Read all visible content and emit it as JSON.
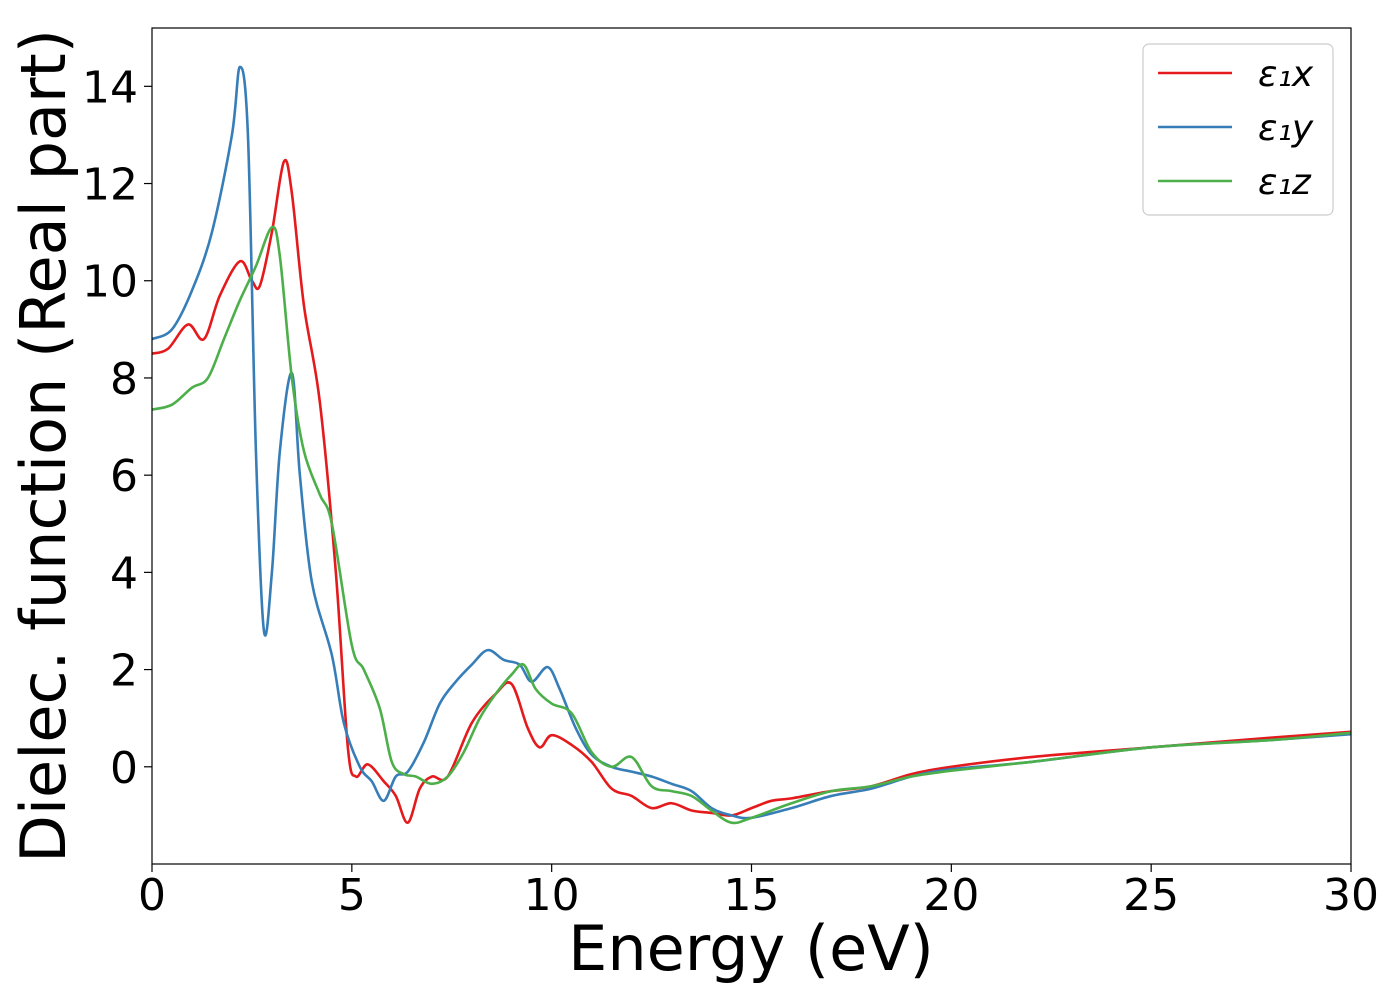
{
  "chart_data": {
    "type": "line",
    "title": "",
    "xlabel": "Energy (eV)",
    "ylabel": "Dielec. function (Real part)",
    "xlim": [
      0,
      30
    ],
    "ylim": [
      -2,
      15.2
    ],
    "x_ticks": [
      "0",
      "5",
      "10",
      "15",
      "20",
      "25",
      "30"
    ],
    "y_ticks": [
      "0",
      "2",
      "4",
      "6",
      "8",
      "10",
      "12",
      "14"
    ],
    "grid": false,
    "legend": {
      "position": "top-right"
    },
    "series": [
      {
        "name": "ε₁x",
        "color": "#e41a1c",
        "x": [
          0,
          0.4,
          0.9,
          1.3,
          1.7,
          2.2,
          2.5,
          2.7,
          3.0,
          3.3,
          3.5,
          3.8,
          4.2,
          4.6,
          4.9,
          5.1,
          5.4,
          5.8,
          6.1,
          6.4,
          6.7,
          7.0,
          7.4,
          8.0,
          8.6,
          9.0,
          9.4,
          9.7,
          10.0,
          10.5,
          11.0,
          11.5,
          12.0,
          12.5,
          13.0,
          13.5,
          14.0,
          14.5,
          15.0,
          15.5,
          16.0,
          17.0,
          18.0,
          19.0,
          20.0,
          22.0,
          25.0,
          28.0,
          30.0
        ],
        "y": [
          8.5,
          8.6,
          9.1,
          8.8,
          9.7,
          10.4,
          10.0,
          9.9,
          11.0,
          12.45,
          11.8,
          9.5,
          7.5,
          4.0,
          0.4,
          -0.2,
          0.05,
          -0.3,
          -0.6,
          -1.15,
          -0.45,
          -0.2,
          -0.2,
          0.9,
          1.5,
          1.7,
          0.8,
          0.4,
          0.65,
          0.45,
          0.1,
          -0.45,
          -0.6,
          -0.85,
          -0.75,
          -0.9,
          -0.95,
          -1.0,
          -0.85,
          -0.7,
          -0.65,
          -0.5,
          -0.4,
          -0.15,
          0.0,
          0.2,
          0.4,
          0.6,
          0.72
        ]
      },
      {
        "name": "ε₁y",
        "color": "#377eb8",
        "x": [
          0,
          0.5,
          1.0,
          1.5,
          2.0,
          2.2,
          2.4,
          2.6,
          2.8,
          3.0,
          3.2,
          3.5,
          3.7,
          4.0,
          4.5,
          4.8,
          5.2,
          5.5,
          5.8,
          6.1,
          6.4,
          6.8,
          7.2,
          7.6,
          8.0,
          8.4,
          8.8,
          9.2,
          9.5,
          9.9,
          10.2,
          10.6,
          11.0,
          11.5,
          12.0,
          12.5,
          13.0,
          13.5,
          14.0,
          14.5,
          15.0,
          16.0,
          17.0,
          18.0,
          19.0,
          20.0,
          22.0,
          25.0,
          28.0,
          30.0
        ],
        "y": [
          8.8,
          9.0,
          9.8,
          11.0,
          13.0,
          14.4,
          13.0,
          6.5,
          2.8,
          4.0,
          6.5,
          8.1,
          6.0,
          3.8,
          2.3,
          0.9,
          0.0,
          -0.3,
          -0.7,
          -0.2,
          -0.1,
          0.5,
          1.3,
          1.75,
          2.1,
          2.4,
          2.2,
          2.1,
          1.75,
          2.05,
          1.6,
          0.8,
          0.25,
          0.0,
          -0.1,
          -0.2,
          -0.35,
          -0.5,
          -0.85,
          -1.0,
          -1.05,
          -0.85,
          -0.6,
          -0.45,
          -0.2,
          -0.05,
          0.1,
          0.4,
          0.55,
          0.67
        ]
      },
      {
        "name": "ε₁z",
        "color": "#4daf4a",
        "x": [
          0,
          0.5,
          1.0,
          1.4,
          1.8,
          2.2,
          2.6,
          3.0,
          3.2,
          3.5,
          3.8,
          4.2,
          4.5,
          5.0,
          5.3,
          5.7,
          6.0,
          6.3,
          6.6,
          7.0,
          7.4,
          7.8,
          8.2,
          8.6,
          9.0,
          9.3,
          9.6,
          10.0,
          10.5,
          11.0,
          11.5,
          12.0,
          12.5,
          13.0,
          13.5,
          14.0,
          14.5,
          15.0,
          16.0,
          17.0,
          18.0,
          19.0,
          20.0,
          22.0,
          25.0,
          28.0,
          30.0
        ],
        "y": [
          7.35,
          7.45,
          7.8,
          8.0,
          8.8,
          9.6,
          10.3,
          11.1,
          10.5,
          8.0,
          6.5,
          5.6,
          5.0,
          2.5,
          2.0,
          1.2,
          0.1,
          -0.15,
          -0.2,
          -0.35,
          -0.2,
          0.3,
          1.0,
          1.5,
          1.9,
          2.1,
          1.6,
          1.3,
          1.1,
          0.3,
          0.0,
          0.2,
          -0.4,
          -0.5,
          -0.6,
          -0.9,
          -1.15,
          -1.05,
          -0.75,
          -0.5,
          -0.4,
          -0.2,
          -0.08,
          0.1,
          0.4,
          0.55,
          0.7
        ]
      }
    ]
  }
}
